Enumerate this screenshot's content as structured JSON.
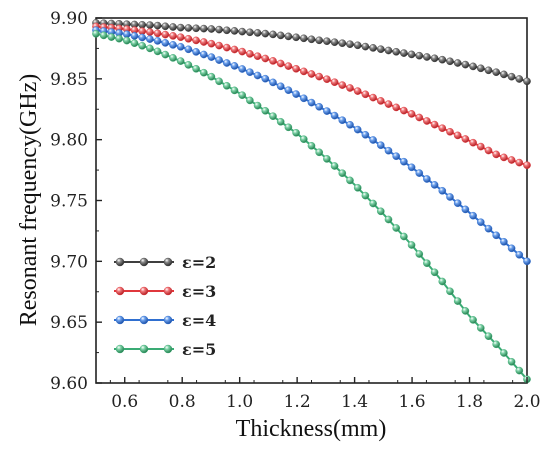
{
  "chart_data": {
    "type": "line",
    "title": "",
    "xlabel": "Thickness(mm)",
    "ylabel": "Resonant frequency(GHz)",
    "xlim": [
      0.5,
      2.0
    ],
    "ylim": [
      9.6,
      9.9
    ],
    "x_ticks": [
      "0.6",
      "0.8",
      "1.0",
      "1.2",
      "1.4",
      "1.6",
      "1.8",
      "2.0"
    ],
    "y_ticks": [
      "9.60",
      "9.65",
      "9.70",
      "9.75",
      "9.80",
      "9.85",
      "9.90"
    ],
    "grid": false,
    "legend_position": "bottom-left",
    "marker": "sphere",
    "x": [
      0.5,
      0.6,
      0.7,
      0.8,
      0.9,
      1.0,
      1.1,
      1.2,
      1.3,
      1.4,
      1.5,
      1.6,
      1.7,
      1.8,
      1.9,
      2.0
    ],
    "series": [
      {
        "name": "ε=2",
        "color": "#3f3f3f",
        "values": [
          9.896,
          9.895,
          9.894,
          9.892,
          9.891,
          9.889,
          9.887,
          9.884,
          9.881,
          9.878,
          9.874,
          9.87,
          9.866,
          9.861,
          9.855,
          9.848
        ]
      },
      {
        "name": "ε=3",
        "color": "#e0373c",
        "values": [
          9.893,
          9.891,
          9.888,
          9.884,
          9.879,
          9.873,
          9.866,
          9.858,
          9.85,
          9.841,
          9.831,
          9.821,
          9.81,
          9.799,
          9.787,
          9.779
        ]
      },
      {
        "name": "ε=4",
        "color": "#2f6fd0",
        "values": [
          9.89,
          9.887,
          9.882,
          9.876,
          9.868,
          9.859,
          9.849,
          9.837,
          9.824,
          9.81,
          9.794,
          9.777,
          9.759,
          9.74,
          9.72,
          9.7
        ]
      },
      {
        "name": "ε=5",
        "color": "#3aab74",
        "values": [
          9.887,
          9.882,
          9.874,
          9.864,
          9.852,
          9.838,
          9.822,
          9.805,
          9.785,
          9.763,
          9.739,
          9.713,
          9.685,
          9.655,
          9.63,
          9.603
        ]
      }
    ]
  }
}
